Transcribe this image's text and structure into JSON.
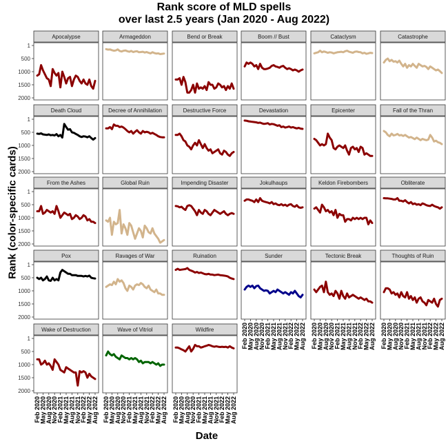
{
  "chart_data": {
    "type": "line",
    "title": [
      "Rank score of MLD spells",
      "over last 2.5 years (Jan 2020 - Aug 2022)"
    ],
    "xlabel": "Date",
    "ylabel": "Rank (color-specific cards)",
    "y_reversed": true,
    "ylim": [
      1,
      2000
    ],
    "y_ticks": [
      1,
      500,
      1000,
      1500,
      2000
    ],
    "y_tick_labels": [
      "1",
      "500",
      "1000",
      "1500",
      "2000"
    ],
    "x_ticks": [
      "Feb 2020",
      "May 2020",
      "Aug 2020",
      "Nov 2020",
      "Feb 2021",
      "May 2021",
      "Aug 2021",
      "Nov 2021",
      "Feb 2022",
      "May 2022",
      "Aug 2022"
    ],
    "x_months": 31,
    "grid": false,
    "facet_layout": {
      "columns": 6,
      "rows": 5
    },
    "color_legend": {
      "red": "#8b0000",
      "white": "#d2b48c",
      "black": "#000000",
      "blue": "#00008b",
      "green": "#006400"
    },
    "series": [
      {
        "name": "Apocalypse",
        "color": "#8b0000",
        "values": [
          1150,
          1100,
          750,
          950,
          1100,
          1250,
          1300,
          1550,
          900,
          1050,
          1150,
          1050,
          1600,
          1000,
          1200,
          1450,
          1250,
          1200,
          1550,
          1300,
          1150,
          1200,
          1350,
          1450,
          1300,
          1450,
          1500,
          1300,
          1550,
          1650,
          1350
        ]
      },
      {
        "name": "Armageddon",
        "color": "#d2b48c",
        "values": [
          140,
          160,
          150,
          180,
          200,
          190,
          150,
          210,
          230,
          200,
          190,
          220,
          240,
          210,
          250,
          230,
          220,
          260,
          250,
          240,
          270,
          250,
          280,
          300,
          260,
          290,
          310,
          300,
          330,
          320,
          310
        ]
      },
      {
        "name": "Bend or Break",
        "color": "#8b0000",
        "values": [
          1300,
          1300,
          1250,
          1500,
          1200,
          1400,
          1800,
          1800,
          1700,
          1500,
          1800,
          1450,
          1650,
          1600,
          1650,
          1550,
          1700,
          1400,
          1500,
          1500,
          1650,
          1600,
          1450,
          1500,
          1600,
          1550,
          1700,
          1550,
          1650,
          1450,
          1650
        ]
      },
      {
        "name": "Boom // Bust",
        "color": "#8b0000",
        "values": [
          800,
          650,
          700,
          650,
          700,
          800,
          750,
          900,
          700,
          850,
          900,
          900,
          880,
          850,
          780,
          750,
          800,
          820,
          850,
          800,
          780,
          850,
          900,
          870,
          900,
          950,
          920,
          950,
          1000,
          950,
          920
        ]
      },
      {
        "name": "Cataclysm",
        "color": "#d2b48c",
        "values": [
          300,
          280,
          260,
          200,
          260,
          230,
          250,
          280,
          260,
          270,
          300,
          280,
          260,
          250,
          240,
          260,
          220,
          200,
          240,
          260,
          280,
          240,
          230,
          250,
          260,
          300,
          280,
          320,
          300,
          280,
          290
        ]
      },
      {
        "name": "Catastrophe",
        "color": "#d2b48c",
        "values": [
          650,
          550,
          500,
          600,
          550,
          620,
          600,
          650,
          580,
          700,
          800,
          700,
          850,
          750,
          800,
          700,
          780,
          850,
          700,
          750,
          800,
          780,
          820,
          900,
          800,
          850,
          900,
          950,
          920,
          980,
          1050
        ]
      },
      {
        "name": "Death Cloud",
        "color": "#000000",
        "values": [
          550,
          560,
          540,
          580,
          590,
          600,
          580,
          610,
          600,
          620,
          570,
          650,
          600,
          700,
          180,
          300,
          400,
          380,
          500,
          520,
          560,
          600,
          650,
          680,
          650,
          660,
          690,
          650,
          720,
          780,
          720
        ]
      },
      {
        "name": "Decree of Annihilation",
        "color": "#8b0000",
        "values": [
          350,
          350,
          300,
          380,
          200,
          250,
          250,
          300,
          280,
          320,
          380,
          450,
          500,
          450,
          550,
          480,
          420,
          500,
          550,
          450,
          500,
          480,
          500,
          550,
          520,
          560,
          600,
          650,
          680,
          690,
          690
        ]
      },
      {
        "name": "Destructive Force",
        "color": "#8b0000",
        "values": [
          600,
          600,
          550,
          650,
          800,
          850,
          1000,
          1050,
          1150,
          1000,
          900,
          1000,
          800,
          950,
          1100,
          950,
          1100,
          1200,
          1150,
          1300,
          1250,
          1200,
          1150,
          1300,
          1350,
          1200,
          1250,
          1350,
          1400,
          1300,
          1250
        ]
      },
      {
        "name": "Devastation",
        "color": "#8b0000",
        "values": [
          50,
          60,
          80,
          90,
          100,
          110,
          120,
          140,
          130,
          160,
          180,
          170,
          150,
          200,
          180,
          190,
          220,
          250,
          230,
          300,
          280,
          320,
          300,
          280,
          320,
          300,
          330,
          350,
          330,
          360,
          370
        ]
      },
      {
        "name": "Epicenter",
        "color": "#8b0000",
        "values": [
          750,
          800,
          900,
          1000,
          950,
          1000,
          950,
          550,
          700,
          800,
          1100,
          1150,
          1050,
          1000,
          1050,
          1100,
          1000,
          1200,
          1350,
          1100,
          1050,
          1150,
          1100,
          1250,
          1050,
          1100,
          1350,
          1300,
          1350,
          1400,
          1400
        ]
      },
      {
        "name": "Fall of the Thran",
        "color": "#d2b48c",
        "values": [
          450,
          500,
          600,
          650,
          550,
          620,
          600,
          560,
          620,
          600,
          640,
          600,
          650,
          700,
          680,
          720,
          760,
          700,
          750,
          800,
          750,
          780,
          800,
          780,
          600,
          700,
          850,
          820,
          880,
          900,
          950
        ]
      },
      {
        "name": "From the Ashes",
        "color": "#8b0000",
        "values": [
          750,
          750,
          550,
          850,
          800,
          700,
          750,
          800,
          750,
          850,
          550,
          750,
          1000,
          900,
          800,
          850,
          900,
          850,
          1050,
          1000,
          900,
          950,
          1050,
          1000,
          900,
          950,
          1100,
          1050,
          1150,
          1150,
          1200
        ]
      },
      {
        "name": "Global Ruin",
        "color": "#d2b48c",
        "values": [
          1100,
          1150,
          1000,
          1650,
          1150,
          1250,
          1200,
          700,
          1600,
          1250,
          1400,
          1650,
          1200,
          1300,
          1550,
          1800,
          1600,
          1400,
          1500,
          1750,
          1300,
          1400,
          1550,
          1600,
          1400,
          1600,
          1700,
          1800,
          1950,
          1900,
          1850
        ]
      },
      {
        "name": "Impending Disaster",
        "color": "#8b0000",
        "values": [
          550,
          560,
          600,
          580,
          650,
          700,
          550,
          520,
          550,
          650,
          750,
          900,
          700,
          800,
          850,
          700,
          750,
          850,
          900,
          800,
          700,
          750,
          800,
          850,
          800,
          750,
          850,
          900,
          850,
          820,
          850
        ]
      },
      {
        "name": "Jokulhaups",
        "color": "#8b0000",
        "values": [
          350,
          300,
          300,
          330,
          350,
          400,
          300,
          400,
          250,
          350,
          380,
          400,
          420,
          450,
          400,
          480,
          450,
          500,
          520,
          480,
          530,
          500,
          550,
          500,
          480,
          550,
          580,
          520,
          600,
          620,
          600
        ]
      },
      {
        "name": "Keldon Firebombers",
        "color": "#8b0000",
        "values": [
          650,
          600,
          700,
          800,
          500,
          600,
          750,
          700,
          800,
          750,
          900,
          700,
          1000,
          850,
          900,
          900,
          1150,
          1050,
          1050,
          1100,
          1000,
          1050,
          1000,
          1050,
          1000,
          1050,
          1000,
          1000,
          1250,
          1100,
          1200
        ]
      },
      {
        "name": "Obliterate",
        "color": "#8b0000",
        "values": [
          250,
          260,
          260,
          270,
          280,
          300,
          300,
          250,
          350,
          350,
          380,
          330,
          400,
          450,
          400,
          480,
          450,
          500,
          480,
          520,
          450,
          480,
          520,
          540,
          550,
          500,
          550,
          580,
          600,
          650,
          600
        ]
      },
      {
        "name": "Pox",
        "color": "#000000",
        "values": [
          500,
          550,
          500,
          600,
          550,
          450,
          600,
          620,
          500,
          600,
          550,
          600,
          300,
          200,
          250,
          300,
          350,
          350,
          400,
          400,
          400,
          430,
          430,
          430,
          450,
          430,
          450,
          420,
          500,
          520,
          530
        ]
      },
      {
        "name": "Ravages of War",
        "color": "#d2b48c",
        "values": [
          850,
          800,
          750,
          780,
          650,
          750,
          550,
          650,
          600,
          700,
          900,
          1000,
          800,
          850,
          950,
          800,
          750,
          780,
          700,
          750,
          850,
          900,
          800,
          950,
          1000,
          1050,
          950,
          1100,
          1100,
          1150,
          1150
        ]
      },
      {
        "name": "Ruination",
        "color": "#8b0000",
        "values": [
          200,
          160,
          200,
          190,
          180,
          170,
          130,
          200,
          230,
          260,
          300,
          280,
          320,
          300,
          330,
          360,
          370,
          350,
          380,
          380,
          400,
          390,
          380,
          400,
          410,
          420,
          430,
          450,
          500,
          530,
          550
        ]
      },
      {
        "name": "Sunder",
        "color": "#00008b",
        "values": [
          950,
          850,
          800,
          850,
          800,
          900,
          820,
          800,
          900,
          950,
          1000,
          980,
          1000,
          1100,
          1050,
          1000,
          1050,
          950,
          1000,
          1050,
          1100,
          1050,
          1100,
          1150,
          1050,
          1100,
          1000,
          1100,
          1200,
          1250,
          1150
        ]
      },
      {
        "name": "Tectonic Break",
        "color": "#8b0000",
        "values": [
          950,
          1050,
          950,
          850,
          800,
          1050,
          650,
          1050,
          1150,
          1100,
          1200,
          1000,
          1100,
          1300,
          1000,
          1200,
          1300,
          1100,
          1250,
          1200,
          1150,
          1200,
          1250,
          1300,
          1250,
          1300,
          1350,
          1300,
          1400,
          1400,
          1450
        ]
      },
      {
        "name": "Thoughts of Ruin",
        "color": "#8b0000",
        "values": [
          1050,
          900,
          900,
          950,
          1100,
          1050,
          1150,
          1100,
          1250,
          1050,
          1200,
          1250,
          1050,
          1300,
          1200,
          1350,
          1250,
          1450,
          1300,
          1250,
          1400,
          1450,
          1550,
          1350,
          1400,
          1450,
          1300,
          1500,
          1600,
          1350,
          1300
        ]
      },
      {
        "name": "Wake of Destruction",
        "color": "#8b0000",
        "values": [
          800,
          800,
          1000,
          950,
          850,
          1000,
          950,
          1050,
          1200,
          800,
          900,
          1000,
          1200,
          1250,
          1300,
          1100,
          1150,
          1200,
          1250,
          1300,
          1300,
          1800,
          1250,
          1300,
          1250,
          1300,
          1500,
          1350,
          1450,
          1500,
          1550
        ]
      },
      {
        "name": "Wave of Vitriol",
        "color": "#006400",
        "values": [
          650,
          500,
          600,
          650,
          600,
          700,
          750,
          800,
          650,
          700,
          750,
          750,
          800,
          750,
          800,
          750,
          800,
          900,
          850,
          950,
          900,
          900,
          900,
          950,
          900,
          950,
          1000,
          950,
          1050,
          1000,
          1000
        ]
      },
      {
        "name": "Wildfire",
        "color": "#8b0000",
        "values": [
          350,
          350,
          380,
          420,
          450,
          500,
          400,
          300,
          500,
          400,
          250,
          300,
          300,
          350,
          330,
          300,
          280,
          250,
          270,
          300,
          320,
          300,
          320,
          330,
          320,
          330,
          320,
          350,
          300,
          350,
          380
        ]
      }
    ]
  }
}
